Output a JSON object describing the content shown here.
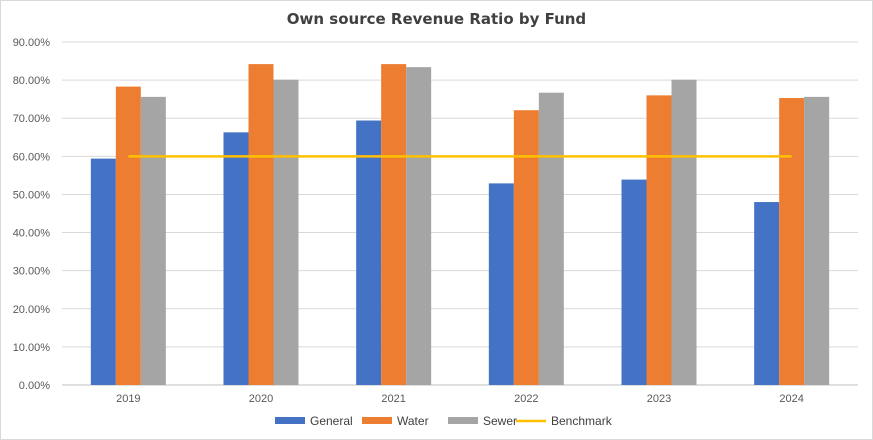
{
  "chart_data": {
    "type": "bar",
    "title": "Own source Revenue Ratio  by Fund",
    "categories": [
      "2019",
      "2020",
      "2021",
      "2022",
      "2023",
      "2024"
    ],
    "series": [
      {
        "name": "General",
        "color": "#4472c4",
        "values": [
          59.4,
          66.3,
          69.4,
          52.9,
          53.9,
          48.0
        ]
      },
      {
        "name": "Water",
        "color": "#ed7d31",
        "values": [
          78.3,
          84.2,
          84.2,
          72.1,
          76.0,
          75.3
        ]
      },
      {
        "name": "Sewer",
        "color": "#a5a5a5",
        "values": [
          75.6,
          80.1,
          83.4,
          76.7,
          80.1,
          75.6
        ]
      }
    ],
    "benchmark": {
      "name": "Benchmark",
      "color": "#ffc000",
      "value": 60.0,
      "type": "line"
    },
    "ylim": [
      0,
      90
    ],
    "yticks": [
      "0.00%",
      "10.00%",
      "20.00%",
      "30.00%",
      "40.00%",
      "50.00%",
      "60.00%",
      "70.00%",
      "80.00%",
      "90.00%"
    ],
    "ytick_values": [
      0,
      10,
      20,
      30,
      40,
      50,
      60,
      70,
      80,
      90
    ],
    "xlabel": "",
    "ylabel": "",
    "grid": "horizontal",
    "legend": "bottom"
  }
}
